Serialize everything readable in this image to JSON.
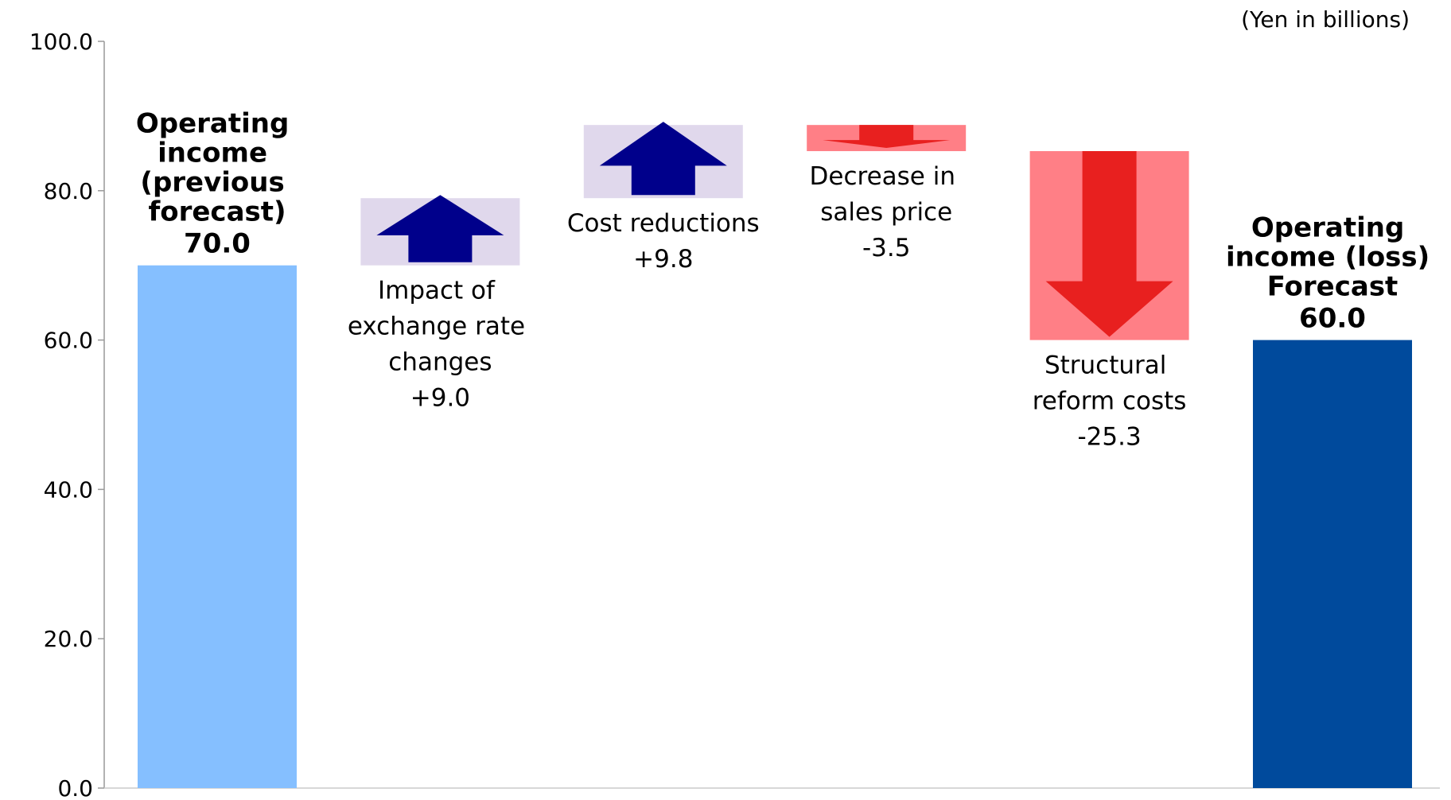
{
  "chart_data": {
    "type": "waterfall",
    "unit_label": "(Yen in billions)",
    "categories": [
      "Operating income (previous forecast)",
      "Impact of exchange rate changes",
      "Cost reductions",
      "Decrease in sales price",
      "Structural reform costs",
      "Operating income (loss) Forecast"
    ],
    "measure": [
      "absolute",
      "relative",
      "relative",
      "relative",
      "relative",
      "absolute"
    ],
    "values": [
      70.0,
      9.0,
      9.8,
      -3.5,
      -25.3,
      60.0
    ],
    "value_labels": [
      "70.0",
      "+9.0",
      "+9.8",
      "-3.5",
      "-25.3",
      "60.0"
    ],
    "colors": {
      "first_total": "#85bfff",
      "last_total": "#004a9c",
      "increase_box": "#e0d8ec",
      "increase_arrow": "#00008b",
      "decrease_box": "#ff7f86",
      "decrease_arrow": "#e8201f"
    },
    "ylim": [
      0,
      100
    ],
    "yticks": [
      {
        "value": 0,
        "label": "0.0"
      },
      {
        "value": 20,
        "label": "20.0"
      },
      {
        "value": 40,
        "label": "40.0"
      },
      {
        "value": 60,
        "label": "60.0"
      },
      {
        "value": 80,
        "label": "80.0"
      },
      {
        "value": 100,
        "label": "100.0"
      }
    ]
  }
}
